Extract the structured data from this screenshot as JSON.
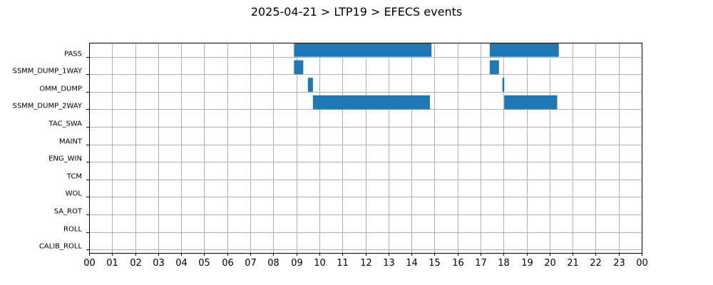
{
  "chart_data": {
    "type": "bar",
    "orientation": "horizontal-timeline",
    "title": "2025-04-21 > LTP19 > EFECS events",
    "xlabel": "",
    "ylabel": "",
    "xlim": [
      0,
      24
    ],
    "x_tick_labels": [
      "00",
      "01",
      "02",
      "03",
      "04",
      "05",
      "06",
      "07",
      "08",
      "09",
      "10",
      "11",
      "12",
      "13",
      "14",
      "15",
      "16",
      "17",
      "18",
      "19",
      "20",
      "21",
      "22",
      "23",
      "00"
    ],
    "categories": [
      "PASS",
      "SSMM_DUMP_1WAY",
      "OMM_DUMP",
      "SSMM_DUMP_2WAY",
      "TAC_SWA",
      "MAINT",
      "ENG_WIN",
      "TCM",
      "WOL",
      "SA_ROT",
      "ROLL",
      "CALIB_ROLL"
    ],
    "grid": true,
    "bar_color": "#1f77b4",
    "series": [
      {
        "category": "PASS",
        "intervals": [
          [
            8.9,
            14.87
          ],
          [
            17.4,
            20.4
          ]
        ]
      },
      {
        "category": "SSMM_DUMP_1WAY",
        "intervals": [
          [
            8.9,
            9.3
          ],
          [
            17.4,
            17.8
          ]
        ]
      },
      {
        "category": "OMM_DUMP",
        "intervals": [
          [
            9.5,
            9.72
          ],
          [
            17.95,
            18.03
          ]
        ]
      },
      {
        "category": "SSMM_DUMP_2WAY",
        "intervals": [
          [
            9.72,
            14.8
          ],
          [
            18.03,
            20.33
          ]
        ]
      },
      {
        "category": "TAC_SWA",
        "intervals": []
      },
      {
        "category": "MAINT",
        "intervals": []
      },
      {
        "category": "ENG_WIN",
        "intervals": []
      },
      {
        "category": "TCM",
        "intervals": []
      },
      {
        "category": "WOL",
        "intervals": []
      },
      {
        "category": "SA_ROT",
        "intervals": []
      },
      {
        "category": "ROLL",
        "intervals": []
      },
      {
        "category": "CALIB_ROLL",
        "intervals": []
      }
    ]
  }
}
